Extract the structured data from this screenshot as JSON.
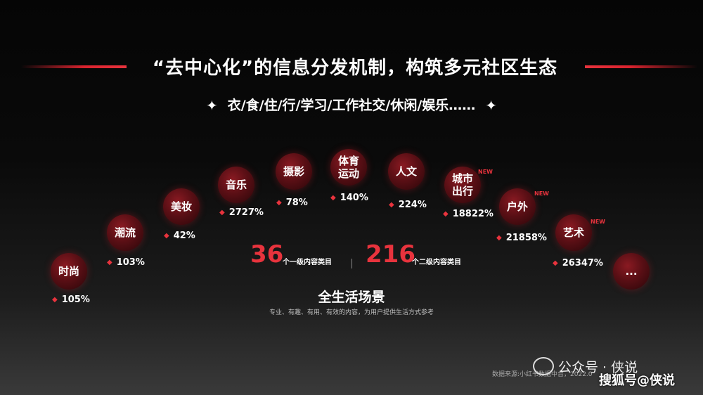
{
  "title": "“去中心化”的信息分发机制，构筑多元社区生态",
  "subtitle": "衣/食/住/行/学习/工作社交/休闲/娱乐……",
  "categories": [
    {
      "label": "时尚",
      "growth": "105%",
      "is_new": false
    },
    {
      "label": "潮流",
      "growth": "103%",
      "is_new": false
    },
    {
      "label": "美妆",
      "growth": "42%",
      "is_new": false
    },
    {
      "label": "音乐",
      "growth": "2727%",
      "is_new": false
    },
    {
      "label": "摄影",
      "growth": "78%",
      "is_new": false
    },
    {
      "label": "体育运动",
      "growth": "140%",
      "is_new": false
    },
    {
      "label": "人文",
      "growth": "224%",
      "is_new": false
    },
    {
      "label": "城市出行",
      "growth": "18822%",
      "is_new": true
    },
    {
      "label": "户外",
      "growth": "21858%",
      "is_new": true
    },
    {
      "label": "艺术",
      "growth": "26347%",
      "is_new": true
    },
    {
      "label": "...",
      "growth": "",
      "is_new": false
    }
  ],
  "new_tag": "NEW",
  "stats": {
    "level1_count": "36",
    "level1_label": "个一级内容类目",
    "level2_count": "216",
    "level2_label": "个二级内容类目"
  },
  "scene": {
    "title": "全生活场景",
    "subtitle": "专业、有趣、有用、有效的内容，为用户提供生活方式参考"
  },
  "source": "数据来源:小红书数据中台，2022.0",
  "watermarks": {
    "wechat": "公众号 · 侠说",
    "sohu": "搜狐号@侠说"
  },
  "colors": {
    "accent": "#e8333d",
    "bubble": "#5a0f15"
  }
}
